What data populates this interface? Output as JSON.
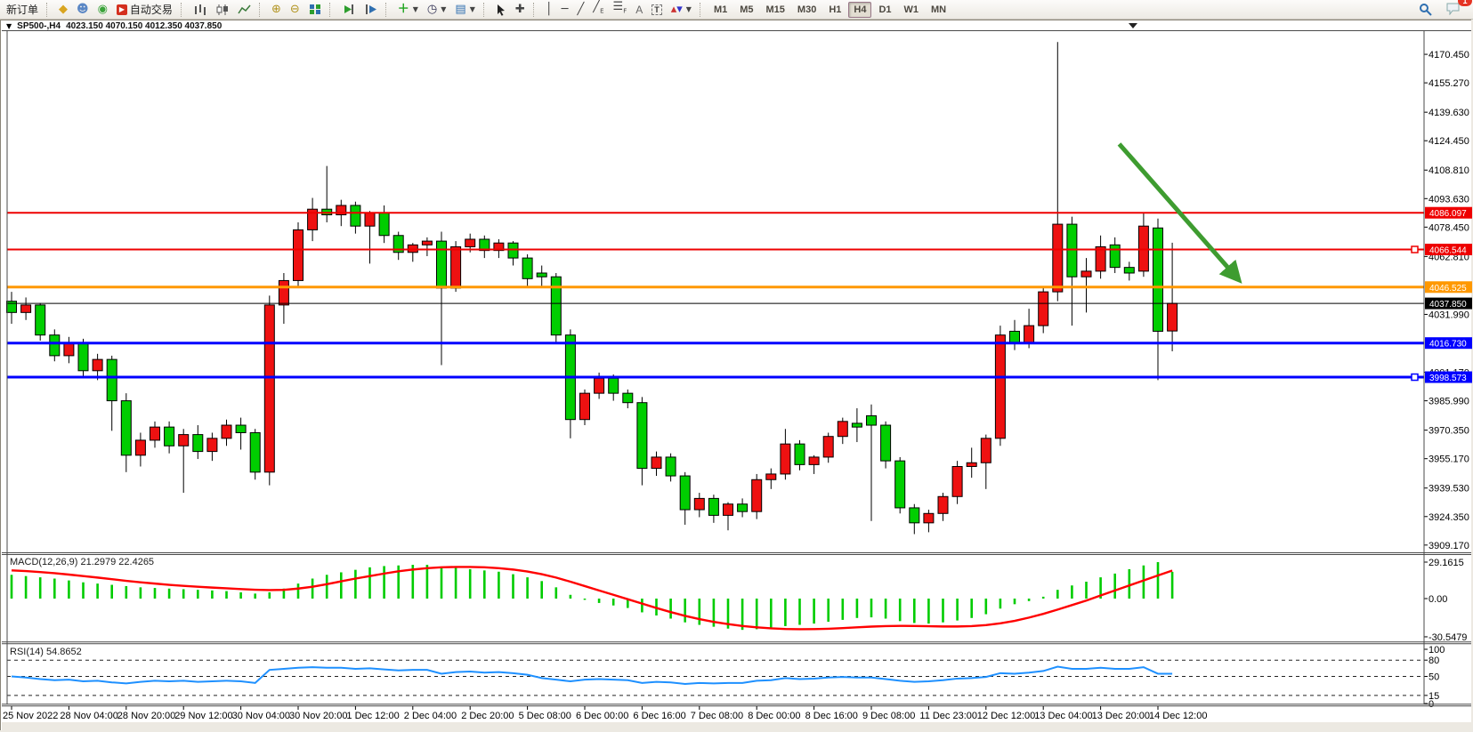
{
  "toolbar": {
    "new_order_label": "新订单",
    "autotrading_label": "自动交易",
    "timeframes": [
      "M1",
      "M5",
      "M15",
      "M30",
      "H1",
      "H4",
      "D1",
      "W1",
      "MN"
    ],
    "active_timeframe": "H4",
    "notification_badge": "1",
    "icon_names": [
      "profile-icon",
      "contacts-icon",
      "signals-icon",
      "autotrading-icon",
      "bar-chart-icon",
      "candlestick-chart-icon",
      "line-chart-icon",
      "zoom-in-icon",
      "zoom-out-icon",
      "tile-windows-icon",
      "auto-scroll-icon",
      "chart-shift-icon",
      "indicators-icon",
      "period-clock-icon",
      "templates-icon",
      "cursor-icon",
      "crosshair-icon",
      "vertical-line-icon",
      "horizontal-line-icon",
      "trendline-icon",
      "equidistant-channel-icon",
      "fibonacci-icon",
      "text-icon",
      "text-label-icon",
      "arrows-icon",
      "search-icon",
      "chat-icon"
    ]
  },
  "colors": {
    "up_candle": "#ee1111",
    "down_candle": "#00ce00",
    "macd_histogram": "#00cc00",
    "macd_signal": "#ff0000",
    "rsi_line": "#1e90ff",
    "arrow": "#3e9c30",
    "hline_red": "#ee0000",
    "hline_orange": "#ff9800",
    "hline_blue": "#0000ff",
    "current_price_line": "#000000"
  },
  "chart_data": {
    "type": "candlestick",
    "symbol": "SP500-,H4",
    "timeframe": "H4",
    "ohlc_text": "4023.150 4070.150 4012.350 4037.850",
    "current_ohlc": {
      "open": "4023.150",
      "high": "4070.150",
      "low": "4012.350",
      "close": "4037.850"
    },
    "price_axis_ticks": [
      "4170.450",
      "4155.270",
      "4139.630",
      "4124.450",
      "4108.810",
      "4093.630",
      "4078.450",
      "4062.810",
      "4031.990",
      "4001.170",
      "3985.990",
      "3970.350",
      "3955.170",
      "3939.530",
      "3924.350",
      "3909.170"
    ],
    "hlines": [
      {
        "name": "resistance-line-1",
        "price": 4086.097,
        "label": "4086.097",
        "color": "#ee0000",
        "width": 2
      },
      {
        "name": "resistance-line-2",
        "price": 4066.544,
        "label": "4066.544",
        "color": "#ee0000",
        "width": 2,
        "handle": true
      },
      {
        "name": "pivot-line-orange",
        "price": 4046.525,
        "label": "4046.525",
        "color": "#ff9800",
        "width": 3
      },
      {
        "name": "current-price-line",
        "price": 4037.85,
        "label": "4037.850",
        "color": "#000000",
        "width": 1,
        "current": true
      },
      {
        "name": "support-line-1",
        "price": 4016.73,
        "label": "4016.730",
        "color": "#0000ff",
        "width": 3
      },
      {
        "name": "support-line-2",
        "price": 3998.573,
        "label": "3998.573",
        "color": "#0000ff",
        "width": 3,
        "handle": true
      }
    ],
    "annotation_arrow": {
      "from": {
        "bar": 77.3,
        "price": 4122.7
      },
      "to": {
        "bar": 85.5,
        "price": 4051.6
      },
      "color": "#3e9c30"
    },
    "x_labels": [
      "25 Nov 2022",
      "28 Nov 04:00",
      "28 Nov 20:00",
      "29 Nov 12:00",
      "30 Nov 04:00",
      "30 Nov 20:00",
      "1 Dec 12:00",
      "2 Dec 04:00",
      "2 Dec 20:00",
      "5 Dec 08:00",
      "6 Dec 00:00",
      "6 Dec 16:00",
      "7 Dec 08:00",
      "8 Dec 00:00",
      "8 Dec 16:00",
      "9 Dec 08:00",
      "11 Dec 23:00",
      "12 Dec 12:00",
      "13 Dec 04:00",
      "13 Dec 20:00",
      "14 Dec 12:00"
    ],
    "bars_per_label": 4,
    "candles": [
      [
        4039,
        4044,
        4027,
        4033
      ],
      [
        4033,
        4041,
        4029,
        4037
      ],
      [
        4037,
        4038,
        4018,
        4021
      ],
      [
        4021,
        4024,
        4007,
        4010
      ],
      [
        4010,
        4020,
        4006,
        4017
      ],
      [
        4017,
        4019,
        3998,
        4002
      ],
      [
        4002,
        4011,
        3997,
        4008
      ],
      [
        4008,
        4010,
        3970,
        3986
      ],
      [
        3986,
        3990,
        3948,
        3957
      ],
      [
        3957,
        3969,
        3951,
        3965
      ],
      [
        3965,
        3975,
        3961,
        3972
      ],
      [
        3972,
        3975,
        3958,
        3962
      ],
      [
        3962,
        3971,
        3937,
        3968
      ],
      [
        3968,
        3973,
        3955,
        3959
      ],
      [
        3959,
        3969,
        3954,
        3966
      ],
      [
        3966,
        3976,
        3962,
        3973
      ],
      [
        3973,
        3977,
        3960,
        3969
      ],
      [
        3969,
        3971,
        3944,
        3948
      ],
      [
        3948,
        4042,
        3941,
        4037
      ],
      [
        4037,
        4054,
        4027,
        4050
      ],
      [
        4050,
        4081,
        4046,
        4077
      ],
      [
        4077,
        4094,
        4071,
        4088
      ],
      [
        4088,
        4111,
        4081,
        4085
      ],
      [
        4085,
        4093,
        4079,
        4090
      ],
      [
        4090,
        4092,
        4075,
        4079
      ],
      [
        4079,
        4087,
        4059,
        4086
      ],
      [
        4086,
        4090,
        4070,
        4074
      ],
      [
        4074,
        4076,
        4061,
        4065
      ],
      [
        4065,
        4070,
        4060,
        4069
      ],
      [
        4069,
        4073,
        4063,
        4071
      ],
      [
        4071,
        4076,
        4005,
        4046
      ],
      [
        4046,
        4071,
        4044,
        4068
      ],
      [
        4068,
        4075,
        4065,
        4072
      ],
      [
        4072,
        4074,
        4062,
        4066
      ],
      [
        4066,
        4072,
        4062,
        4070
      ],
      [
        4070,
        4071,
        4058,
        4062
      ],
      [
        4062,
        4064,
        4046,
        4051
      ],
      [
        4054,
        4058,
        4047,
        4052
      ],
      [
        4052,
        4054,
        4017,
        4021
      ],
      [
        4021,
        4024,
        3966,
        3976
      ],
      [
        3976,
        3992,
        3973,
        3990
      ],
      [
        3990,
        4001,
        3987,
        3998
      ],
      [
        3998,
        4000,
        3986,
        3990
      ],
      [
        3990,
        3992,
        3982,
        3985
      ],
      [
        3985,
        3988,
        3941,
        3950
      ],
      [
        3950,
        3959,
        3946,
        3956
      ],
      [
        3956,
        3958,
        3943,
        3946
      ],
      [
        3946,
        3948,
        3920,
        3928
      ],
      [
        3928,
        3937,
        3924,
        3934
      ],
      [
        3934,
        3936,
        3921,
        3925
      ],
      [
        3925,
        3932,
        3917,
        3931
      ],
      [
        3931,
        3934,
        3924,
        3927
      ],
      [
        3927,
        3947,
        3923,
        3944
      ],
      [
        3944,
        3950,
        3939,
        3947
      ],
      [
        3947,
        3971,
        3944,
        3963
      ],
      [
        3963,
        3965,
        3949,
        3952
      ],
      [
        3952,
        3957,
        3947,
        3956
      ],
      [
        3956,
        3969,
        3953,
        3967
      ],
      [
        3967,
        3977,
        3963,
        3975
      ],
      [
        3974,
        3982,
        3964,
        3972
      ],
      [
        3978,
        3984,
        3922,
        3973
      ],
      [
        3973,
        3975,
        3950,
        3954
      ],
      [
        3954,
        3956,
        3926,
        3929
      ],
      [
        3929,
        3931,
        3915,
        3921
      ],
      [
        3921,
        3928,
        3916,
        3926
      ],
      [
        3926,
        3937,
        3922,
        3935
      ],
      [
        3935,
        3954,
        3931,
        3951
      ],
      [
        3951,
        3961,
        3945,
        3953
      ],
      [
        3953,
        3968,
        3939,
        3966
      ],
      [
        3966,
        4026,
        3962,
        4021
      ],
      [
        4023,
        4029,
        4013,
        4017
      ],
      [
        4017,
        4035,
        4014,
        4026
      ],
      [
        4026,
        4046,
        4022,
        4044
      ],
      [
        4044,
        4177,
        4039,
        4080
      ],
      [
        4080,
        4084,
        4026,
        4052
      ],
      [
        4052,
        4062,
        4033,
        4055
      ],
      [
        4055,
        4074,
        4051,
        4068
      ],
      [
        4069,
        4073,
        4054,
        4057
      ],
      [
        4057,
        4060,
        4050,
        4054
      ],
      [
        4055,
        4086,
        4052,
        4079
      ],
      [
        4078,
        4083,
        3997,
        4023
      ],
      [
        4023.15,
        4070.15,
        4012.35,
        4037.85
      ]
    ],
    "macd": {
      "full_label": "MACD(12,26,9) 21.2979 22.4265",
      "main_value": "21.2979",
      "signal_value": "22.4265",
      "axis_ticks": [
        "29.1615",
        "0.00",
        "-30.5479"
      ],
      "histogram": [
        19,
        18,
        17,
        16,
        14.5,
        13,
        12,
        11,
        10,
        9,
        8.5,
        8,
        7.5,
        7,
        6.5,
        6,
        5,
        4,
        5,
        8,
        12,
        16,
        19,
        21,
        23,
        25,
        26,
        26.5,
        27,
        27,
        25.5,
        24.5,
        23.5,
        22.5,
        21.5,
        19.5,
        17,
        14,
        9,
        3,
        -1,
        -3.5,
        -5.5,
        -7.5,
        -11,
        -13.5,
        -16,
        -19,
        -21,
        -22.5,
        -24,
        -25,
        -24.5,
        -23.5,
        -22,
        -21,
        -20,
        -18.5,
        -17,
        -15.5,
        -15,
        -16,
        -18,
        -19.5,
        -20,
        -19,
        -17.5,
        -15.5,
        -12.5,
        -8,
        -4.5,
        -2,
        1.5,
        7,
        10.5,
        13.5,
        17,
        20,
        23.5,
        26.5,
        29.16,
        21.3
      ],
      "signal": [
        22.5,
        22,
        21.2,
        20.3,
        19.2,
        18,
        16.8,
        15.5,
        14.2,
        13,
        12,
        11,
        10.2,
        9.5,
        8.8,
        8.2,
        7.6,
        7.1,
        6.8,
        7,
        8,
        9.5,
        11.5,
        13.8,
        16,
        18,
        20,
        21.8,
        23.2,
        24.3,
        25,
        25.3,
        25.3,
        25,
        24.3,
        23.2,
        21.6,
        19.5,
        16.8,
        13.5,
        10,
        6.5,
        3,
        -0.5,
        -4,
        -7.5,
        -10.8,
        -13.8,
        -16.4,
        -18.6,
        -20.4,
        -21.9,
        -23,
        -23.8,
        -24.3,
        -24.5,
        -24.4,
        -24.1,
        -23.6,
        -23,
        -22.4,
        -22,
        -21.8,
        -21.9,
        -22.1,
        -22.3,
        -22.3,
        -22,
        -21.2,
        -19.8,
        -17.8,
        -15.2,
        -12.2,
        -8.8,
        -5.2,
        -1.6,
        2.5,
        6.5,
        10.5,
        14.5,
        18.5,
        22.4
      ]
    },
    "rsi": {
      "full_label": "RSI(14) 54.8652",
      "value": "54.8652",
      "axis_ticks": [
        "100",
        "80",
        "50",
        "15",
        "0"
      ],
      "levels": [
        80,
        50,
        15
      ],
      "values": [
        50,
        48,
        45,
        43,
        44,
        41,
        42,
        39,
        37,
        40,
        42,
        41,
        42,
        40,
        41,
        42,
        41,
        38,
        62,
        64,
        66,
        67,
        66,
        66,
        64,
        65,
        63,
        61,
        62,
        62,
        55,
        58,
        59,
        57,
        58,
        56,
        53,
        47,
        44,
        41,
        44,
        45,
        44,
        43,
        38,
        40,
        39,
        36,
        38,
        37,
        38,
        38,
        42,
        43,
        47,
        45,
        46,
        48,
        49,
        48,
        48,
        45,
        42,
        40,
        41,
        43,
        46,
        47,
        49,
        56,
        55,
        57,
        60,
        68,
        64,
        64,
        66,
        64,
        64,
        67,
        55,
        54.87
      ]
    }
  }
}
